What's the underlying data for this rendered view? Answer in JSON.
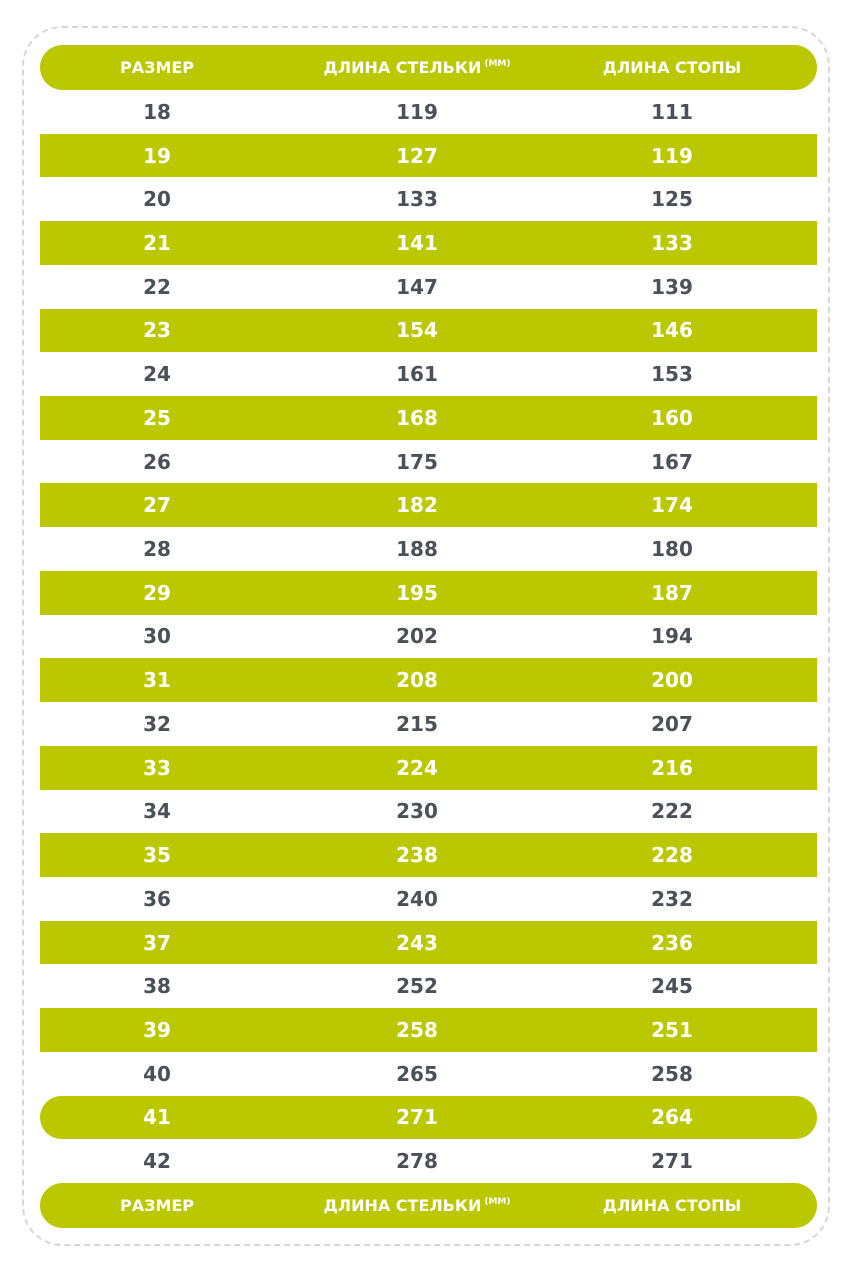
{
  "header": {
    "columns": [
      "РАЗМЕР",
      "ДЛИНА СТЕЛЬКИ",
      "ДЛИНА СТОПЫ"
    ],
    "unit": "(ММ)"
  },
  "rows": [
    [
      "18",
      "119",
      "111"
    ],
    [
      "19",
      "127",
      "119"
    ],
    [
      "20",
      "133",
      "125"
    ],
    [
      "21",
      "141",
      "133"
    ],
    [
      "22",
      "147",
      "139"
    ],
    [
      "23",
      "154",
      "146"
    ],
    [
      "24",
      "161",
      "153"
    ],
    [
      "25",
      "168",
      "160"
    ],
    [
      "26",
      "175",
      "167"
    ],
    [
      "27",
      "182",
      "174"
    ],
    [
      "28",
      "188",
      "180"
    ],
    [
      "29",
      "195",
      "187"
    ],
    [
      "30",
      "202",
      "194"
    ],
    [
      "31",
      "208",
      "200"
    ],
    [
      "32",
      "215",
      "207"
    ],
    [
      "33",
      "224",
      "216"
    ],
    [
      "34",
      "230",
      "222"
    ],
    [
      "35",
      "238",
      "228"
    ],
    [
      "36",
      "240",
      "232"
    ],
    [
      "37",
      "243",
      "236"
    ],
    [
      "38",
      "252",
      "245"
    ],
    [
      "39",
      "258",
      "251"
    ],
    [
      "40",
      "265",
      "258"
    ],
    [
      "41",
      "271",
      "264"
    ],
    [
      "42",
      "278",
      "271"
    ]
  ],
  "footer": {
    "columns": [
      "РАЗМЕР",
      "ДЛИНА СТЕЛЬКИ",
      "ДЛИНА СТОПЫ"
    ],
    "unit": "(ММ)"
  }
}
